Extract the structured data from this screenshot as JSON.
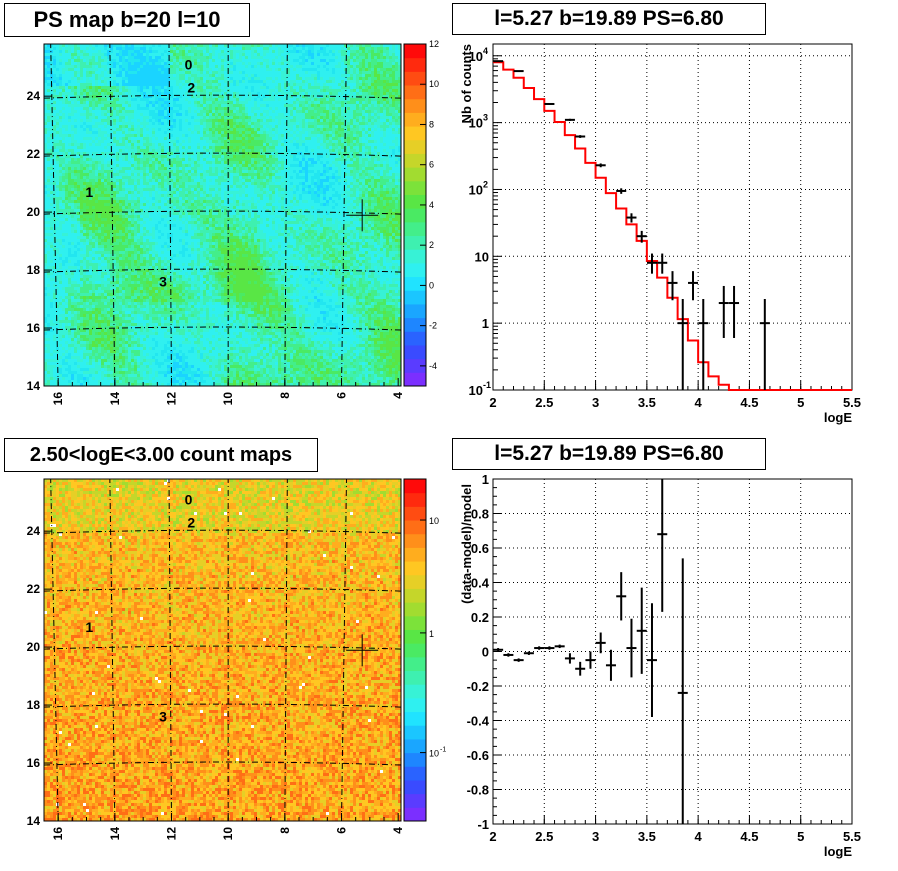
{
  "panels": {
    "tl_title": "PS map b=20 l=10",
    "tr_title": "l=5.27 b=19.89 PS=6.80",
    "bl_title": "2.50<logE<3.00 count maps",
    "br_title": "l=5.27 b=19.89 PS=6.80"
  },
  "colors": {
    "model_line": "#ff0000",
    "data_marks": "#000000",
    "grid": "#000000"
  },
  "chart_data": [
    {
      "type": "heatmap",
      "title": "PS map b=20 l=10",
      "x_ticks": [
        "16",
        "14",
        "12",
        "10",
        "8",
        "6",
        "4"
      ],
      "y_ticks": [
        "14",
        "16",
        "18",
        "20",
        "22",
        "24"
      ],
      "xlim": [
        16.5,
        3.9
      ],
      "ylim": [
        14,
        25.8
      ],
      "colorbar_ticks": [
        "-4",
        "-2",
        "0",
        "2",
        "4",
        "6",
        "8",
        "10",
        "12"
      ],
      "colorbar_range": [
        -5,
        12
      ],
      "source_labels": [
        {
          "label": "0",
          "l": 11.4,
          "b": 25.1
        },
        {
          "label": "2",
          "l": 11.3,
          "b": 24.3
        },
        {
          "label": "1",
          "l": 14.9,
          "b": 20.7
        },
        {
          "label": "3",
          "l": 12.3,
          "b": 17.6
        }
      ],
      "marker": {
        "l": 5.27,
        "b": 19.89
      }
    },
    {
      "type": "line",
      "title": "l=5.27 b=19.89 PS=6.80",
      "xlabel": "logE",
      "ylabel": "Nb of counts",
      "xlim": [
        2,
        5.5
      ],
      "ylim": [
        0.1,
        15000
      ],
      "yscale": "log",
      "x_ticks": [
        "2",
        "2.5",
        "3",
        "3.5",
        "4",
        "4.5",
        "5",
        "5.5"
      ],
      "y_ticks": [
        "10^-1",
        "1",
        "10",
        "10^2",
        "10^3",
        "10^4"
      ],
      "grid": true,
      "series": [
        {
          "style": "step",
          "edges": [
            2.0,
            2.1,
            2.2,
            2.3,
            2.4,
            2.5,
            2.6,
            2.7,
            2.8,
            2.9,
            3.0,
            3.1,
            3.2,
            3.3,
            3.4,
            3.5,
            3.6,
            3.7,
            3.8,
            3.9,
            4.0,
            4.1,
            4.2,
            4.3,
            4.4,
            4.5,
            4.6,
            4.7,
            4.8,
            4.9,
            5.0,
            5.1,
            5.2,
            5.3,
            5.4,
            5.5
          ],
          "values": [
            8000,
            6200,
            4700,
            3300,
            2250,
            1500,
            1020,
            650,
            410,
            250,
            150,
            88,
            52,
            30,
            17,
            8.5,
            4.8,
            2.4,
            1.15,
            0.55,
            0.26,
            0.16,
            0.12,
            0.1,
            0.1,
            0.1,
            0.1,
            0.1,
            0.1,
            0.1,
            0.1,
            0.1,
            0.1,
            0.1,
            0.1
          ]
        },
        {
          "style": "errorbar",
          "points": [
            {
              "x": 2.05,
              "y": 8300,
              "lo": 8210,
              "hi": 8390
            },
            {
              "x": 2.25,
              "y": 5900,
              "lo": 5820,
              "hi": 5980
            },
            {
              "x": 2.55,
              "y": 1900,
              "lo": 1850,
              "hi": 1950
            },
            {
              "x": 2.75,
              "y": 1100,
              "lo": 1060,
              "hi": 1140
            },
            {
              "x": 2.85,
              "y": 620,
              "lo": 590,
              "hi": 650
            },
            {
              "x": 3.05,
              "y": 230,
              "lo": 215,
              "hi": 245
            },
            {
              "x": 3.25,
              "y": 95,
              "lo": 86,
              "hi": 104
            },
            {
              "x": 3.35,
              "y": 38,
              "lo": 32,
              "hi": 44
            },
            {
              "x": 3.45,
              "y": 20,
              "lo": 16,
              "hi": 24
            },
            {
              "x": 3.55,
              "y": 8,
              "lo": 5.5,
              "hi": 11
            },
            {
              "x": 3.65,
              "y": 8,
              "lo": 5.5,
              "hi": 11
            },
            {
              "x": 3.75,
              "y": 4,
              "lo": 2.2,
              "hi": 6
            },
            {
              "x": 3.85,
              "y": 1,
              "lo": 0.1,
              "hi": 2.3
            },
            {
              "x": 3.95,
              "y": 4,
              "lo": 2.2,
              "hi": 6
            },
            {
              "x": 4.05,
              "y": 1,
              "lo": 0.1,
              "hi": 2.3
            },
            {
              "x": 4.25,
              "y": 2,
              "lo": 0.6,
              "hi": 3.6
            },
            {
              "x": 4.35,
              "y": 2,
              "lo": 0.6,
              "hi": 3.6
            },
            {
              "x": 4.65,
              "y": 1,
              "lo": 0.1,
              "hi": 2.3
            }
          ]
        }
      ]
    },
    {
      "type": "heatmap",
      "title": "2.50<logE<3.00 count maps",
      "x_ticks": [
        "16",
        "14",
        "12",
        "10",
        "8",
        "6",
        "4"
      ],
      "y_ticks": [
        "14",
        "16",
        "18",
        "20",
        "22",
        "24"
      ],
      "xlim": [
        16.5,
        3.9
      ],
      "ylim": [
        14,
        25.8
      ],
      "colorbar_ticks": [
        "10",
        "1",
        "10"
      ],
      "colorbar_tick_exponents": [
        "",
        "",
        "-1"
      ],
      "colorbar_scale": "log",
      "source_labels": [
        {
          "label": "0",
          "l": 11.4,
          "b": 25.1
        },
        {
          "label": "2",
          "l": 11.3,
          "b": 24.3
        },
        {
          "label": "1",
          "l": 14.9,
          "b": 20.7
        },
        {
          "label": "3",
          "l": 12.3,
          "b": 17.6
        }
      ],
      "marker": {
        "l": 5.27,
        "b": 19.89
      }
    },
    {
      "type": "scatter",
      "title": "l=5.27 b=19.89 PS=6.80",
      "xlabel": "logE",
      "ylabel": "(data-model)/model",
      "xlim": [
        2,
        5.5
      ],
      "ylim": [
        -1,
        1
      ],
      "x_ticks": [
        "2",
        "2.5",
        "3",
        "3.5",
        "4",
        "4.5",
        "5",
        "5.5"
      ],
      "y_ticks": [
        "-1",
        "-0.8",
        "-0.6",
        "-0.4",
        "-0.2",
        "0",
        "0.2",
        "0.4",
        "0.6",
        "0.8",
        "1"
      ],
      "grid": true,
      "points": [
        {
          "x": 2.05,
          "y": 0.01,
          "err": 0.01
        },
        {
          "x": 2.15,
          "y": -0.02,
          "err": 0.01
        },
        {
          "x": 2.25,
          "y": -0.05,
          "err": 0.01
        },
        {
          "x": 2.35,
          "y": -0.01,
          "err": 0.01
        },
        {
          "x": 2.45,
          "y": 0.02,
          "err": 0.01
        },
        {
          "x": 2.55,
          "y": 0.02,
          "err": 0.01
        },
        {
          "x": 2.65,
          "y": 0.03,
          "err": 0.01
        },
        {
          "x": 2.75,
          "y": -0.04,
          "err": 0.03
        },
        {
          "x": 2.85,
          "y": -0.1,
          "err": 0.04
        },
        {
          "x": 2.95,
          "y": -0.05,
          "err": 0.05
        },
        {
          "x": 3.05,
          "y": 0.05,
          "err": 0.06
        },
        {
          "x": 3.15,
          "y": -0.08,
          "err": 0.09
        },
        {
          "x": 3.25,
          "y": 0.32,
          "err": 0.14
        },
        {
          "x": 3.35,
          "y": 0.02,
          "err": 0.17
        },
        {
          "x": 3.45,
          "y": 0.12,
          "err": 0.25
        },
        {
          "x": 3.55,
          "y": -0.05,
          "err": 0.33
        },
        {
          "x": 3.65,
          "y": 0.68,
          "err": 0.45
        },
        {
          "x": 3.85,
          "y": -0.24,
          "err": 0.78
        }
      ]
    }
  ]
}
